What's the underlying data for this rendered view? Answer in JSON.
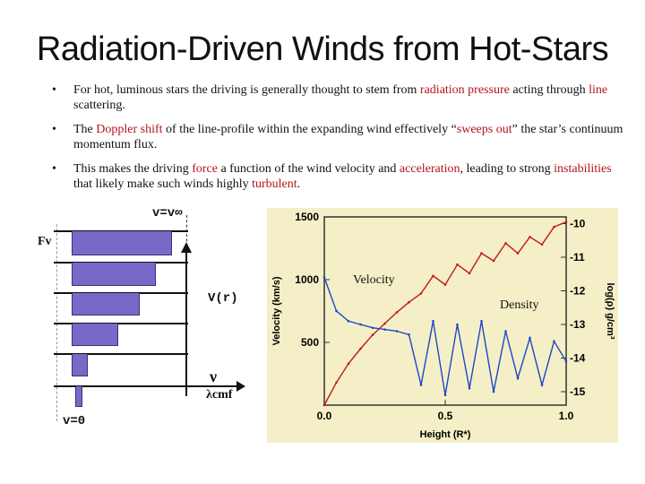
{
  "slide": {
    "title": "Radiation-Driven Winds from Hot-Stars",
    "bullet_symbol": "•",
    "bullets": [
      {
        "p1": "For hot, luminous stars the driving is generally thought to stem from ",
        "h1": "radiation pressure",
        "p2": " acting through ",
        "h2": "line",
        "p3": " scattering."
      },
      {
        "p1": "The ",
        "h1": "Doppler shift",
        "p2": " of the line-profile within the expanding wind effectively “",
        "h2": "sweeps out",
        "p3": "” the star’s continuum momentum flux."
      },
      {
        "p1": "This makes the driving ",
        "h1": "force",
        "p2": " a function of the wind velocity and ",
        "h2": "acceleration",
        "p3": ", leading to strong ",
        "h3": "instabilities",
        "p4": " that likely make such winds highly ",
        "h4": "turbulent",
        "p5": "."
      }
    ]
  },
  "schematic": {
    "top_label": "v=v∞",
    "fv_label": "Fv",
    "vr_label": "V(r)",
    "nu_label": "ν",
    "lambda_label": "λcmf",
    "bottom_label": "v=0",
    "profile_depth_levels": [
      1.0,
      0.8,
      0.6,
      0.45,
      0.3,
      0.18
    ]
  },
  "chart_data": {
    "type": "line",
    "xlabel": "Height (R*)",
    "ylabel": "Velocity (km/s)",
    "y2label": "log(ρ) g/cm³",
    "xlim": [
      0.0,
      1.0
    ],
    "xticks": [
      "0.0",
      "0.5",
      "1.0"
    ],
    "ylim": [
      0,
      1500
    ],
    "yticks": [
      "500",
      "1000",
      "1500"
    ],
    "y2lim": [
      -15.4,
      -9.8
    ],
    "y2ticks": [
      "-10",
      "-11",
      "-12",
      "-13",
      "-14",
      "-15"
    ],
    "series": [
      {
        "name": "Velocity",
        "color": "#c4171e",
        "x": [
          0.0,
          0.05,
          0.1,
          0.15,
          0.2,
          0.25,
          0.3,
          0.35,
          0.4,
          0.45,
          0.5,
          0.55,
          0.6,
          0.65,
          0.7,
          0.75,
          0.8,
          0.85,
          0.9,
          0.95,
          1.0
        ],
        "y": [
          0,
          180,
          330,
          450,
          560,
          650,
          740,
          820,
          890,
          1030,
          960,
          1120,
          1050,
          1210,
          1150,
          1290,
          1210,
          1340,
          1280,
          1420,
          1460
        ]
      },
      {
        "name": "Density",
        "color": "#1e47c8",
        "x": [
          0.0,
          0.05,
          0.1,
          0.15,
          0.2,
          0.25,
          0.3,
          0.35,
          0.4,
          0.45,
          0.5,
          0.55,
          0.6,
          0.65,
          0.7,
          0.75,
          0.8,
          0.85,
          0.9,
          0.95,
          1.0
        ],
        "y": [
          -11.6,
          -12.6,
          -12.9,
          -13.0,
          -13.1,
          -13.15,
          -13.2,
          -13.3,
          -14.8,
          -12.9,
          -15.1,
          -13.0,
          -14.9,
          -12.9,
          -15.0,
          -13.2,
          -14.6,
          -13.4,
          -14.8,
          -13.5,
          -14.1
        ]
      }
    ],
    "annotations": [
      "Velocity",
      "Density"
    ],
    "grid": false,
    "background": "#f4efc6"
  }
}
